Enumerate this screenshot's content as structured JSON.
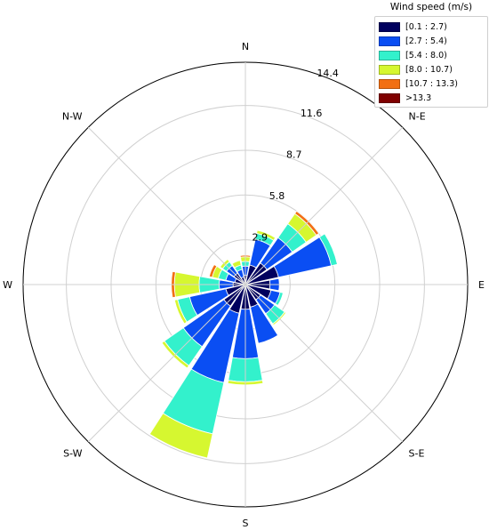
{
  "chart_data": {
    "type": "wind-rose",
    "legend_title": "Wind speed (m/s)",
    "legend_placement": "top-right",
    "directions": [
      "N",
      "NNE",
      "NE",
      "ENE",
      "E",
      "ESE",
      "SE",
      "SSE",
      "S",
      "SSW",
      "SW",
      "WSW",
      "W",
      "WNW",
      "NW",
      "NNW"
    ],
    "direction_labels": [
      "N",
      "N-E",
      "E",
      "S-E",
      "S",
      "S-W",
      "W",
      "N-W"
    ],
    "radial_ticks": [
      "2.9",
      "5.8",
      "8.7",
      "11.6",
      "14.4"
    ],
    "radial_tick_values": [
      2.9,
      5.8,
      8.7,
      11.6,
      14.4
    ],
    "rmax": 14.4,
    "grid": true,
    "series": [
      {
        "name": "[0.1 : 2.7)",
        "color": "#00005e",
        "values": [
          0.6,
          1.3,
          1.7,
          2.2,
          1.6,
          1.7,
          1.2,
          1.5,
          1.6,
          1.9,
          1.7,
          1.3,
          0.8,
          0.7,
          0.9,
          0.5
        ]
      },
      {
        "name": "[2.7 : 5.4)",
        "color": "#0a4ef3",
        "values": [
          0.6,
          1.7,
          2.0,
          3.5,
          0.6,
          0.6,
          1.1,
          2.4,
          3.2,
          4.6,
          3.2,
          2.4,
          0.9,
          0.6,
          0.6,
          0.5
        ]
      },
      {
        "name": "[5.4 : 8.0)",
        "color": "#33f1cc",
        "values": [
          0.3,
          0.4,
          1.1,
          0.4,
          0.0,
          0.2,
          0.8,
          0.0,
          1.5,
          3.4,
          1.5,
          0.8,
          1.3,
          0.5,
          0.3,
          0.3
        ]
      },
      {
        "name": "[8.0 : 10.7)",
        "color": "#d6f730",
        "values": [
          0.3,
          0.2,
          0.8,
          0.0,
          0.0,
          0.0,
          0.1,
          0.0,
          0.2,
          1.6,
          0.2,
          0.2,
          1.6,
          0.4,
          0.2,
          0.3
        ]
      },
      {
        "name": "[10.7 : 13.3)",
        "color": "#f26f13",
        "values": [
          0.1,
          0.0,
          0.2,
          0.0,
          0.0,
          0.0,
          0.0,
          0.0,
          0.0,
          0.0,
          0.0,
          0.0,
          0.2,
          0.2,
          0.0,
          0.0
        ]
      },
      {
        "name": ">13.3",
        "color": "#7f0000",
        "values": [
          0,
          0,
          0,
          0,
          0,
          0,
          0,
          0,
          0,
          0,
          0,
          0,
          0,
          0,
          0,
          0
        ]
      }
    ]
  }
}
